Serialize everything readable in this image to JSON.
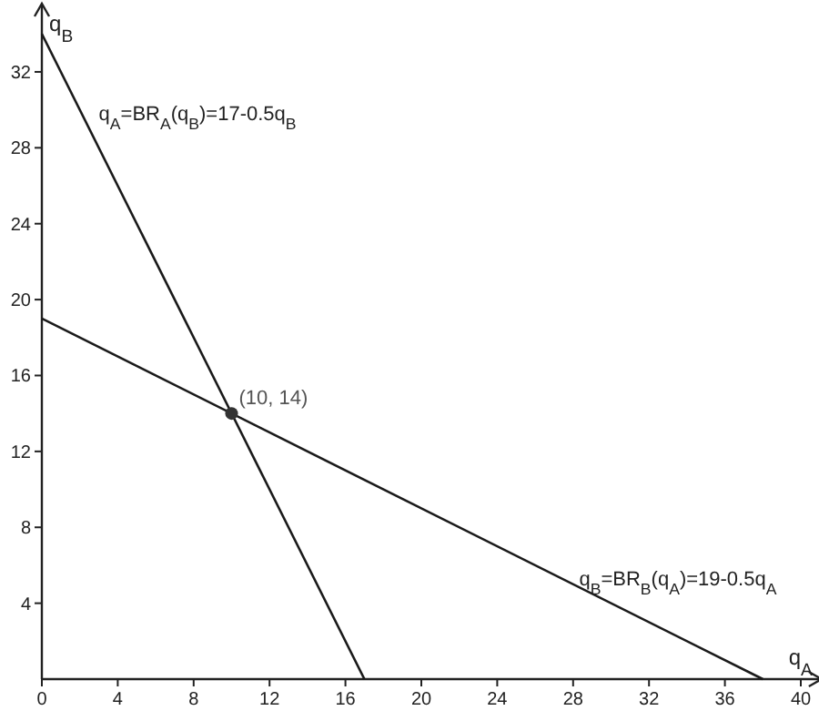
{
  "chart_data": {
    "type": "line",
    "xlabel": "q$_{A}$",
    "ylabel": "q$_{B}$",
    "xlim": [
      0,
      41
    ],
    "ylim": [
      0,
      35.5
    ],
    "xticks": [
      0,
      4,
      8,
      12,
      16,
      20,
      24,
      28,
      32,
      36,
      40
    ],
    "yticks": [
      4,
      8,
      12,
      16,
      20,
      24,
      28,
      32
    ],
    "grid": false,
    "line_style": "solid",
    "series": [
      {
        "name": "q$_{A}$=BR$_{A}$(q$_{B}$)=17-0.5q$_{B}$",
        "color": "#1a1a1a",
        "x": [
          0,
          17
        ],
        "values": [
          34,
          0
        ]
      },
      {
        "name": "q$_{B}$=BR$_{B}$(q$_{A}$)=19-0.5q$_{A}$",
        "color": "#1a1a1a",
        "x": [
          0,
          38
        ],
        "values": [
          19,
          0
        ]
      },
      {
        "type": "scatter",
        "color": "#333333",
        "x": [
          10
        ],
        "values": [
          14
        ],
        "marker": "circle"
      }
    ],
    "annotations": [
      {
        "text": "(10, 14)",
        "x": 10,
        "y": 14
      }
    ]
  }
}
